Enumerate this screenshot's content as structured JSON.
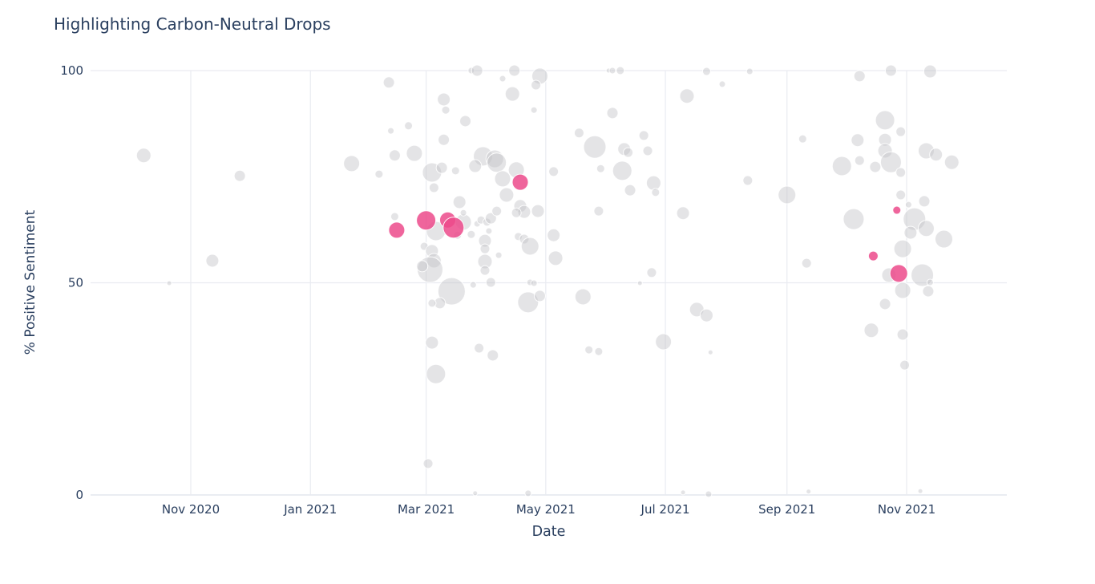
{
  "page": {
    "background": "#ffffff"
  },
  "header": {
    "title": "Highlighting Carbon-Neutral Drops"
  },
  "chart_data": {
    "type": "scatter",
    "subtype": "bubble",
    "title": "Highlighting Carbon-Neutral Drops",
    "xlabel": "Date",
    "ylabel": "% Positive Sentiment",
    "legend": "none",
    "grid": true,
    "x_axis": {
      "type": "date",
      "range": [
        "2020-09-11",
        "2021-12-22"
      ],
      "ticks": [
        {
          "label": "Nov 2020",
          "date": "2020-11-01"
        },
        {
          "label": "Jan 2021",
          "date": "2021-01-01"
        },
        {
          "label": "Mar 2021",
          "date": "2021-03-01"
        },
        {
          "label": "May 2021",
          "date": "2021-05-01"
        },
        {
          "label": "Jul 2021",
          "date": "2021-07-01"
        },
        {
          "label": "Sep 2021",
          "date": "2021-09-01"
        },
        {
          "label": "Nov 2021",
          "date": "2021-11-01"
        }
      ]
    },
    "y_axis": {
      "range": [
        0,
        100
      ],
      "ticks": [
        {
          "label": "0",
          "value": 0
        },
        {
          "label": "50",
          "value": 50
        },
        {
          "label": "100",
          "value": 100
        }
      ]
    },
    "colors": {
      "base_marker": "#c4c4c8",
      "highlight_marker": "#ec4a8b",
      "text": "#2a3f5f",
      "grid": "#e9ebf1",
      "axis_line": "#e3e7ee",
      "marker_stroke": "#ffffff"
    },
    "point_format": [
      "date",
      "pct_positive_sentiment",
      "marker_radius_px"
    ],
    "series": [
      {
        "id": "all-drops",
        "color_key": "base_marker",
        "opacity": 0.45,
        "points": [
          [
            "2020-10-08",
            80,
            9
          ],
          [
            "2020-11-26",
            75.2,
            7
          ],
          [
            "2020-11-12",
            55.2,
            8
          ],
          [
            "2020-10-21",
            49.9,
            3
          ],
          [
            "2021-02-10",
            97.2,
            7
          ],
          [
            "2021-01-22",
            78.1,
            10
          ],
          [
            "2021-02-05",
            75.6,
            5
          ],
          [
            "2021-02-13",
            80,
            7
          ],
          [
            "2021-02-11",
            85.8,
            4
          ],
          [
            "2021-02-20",
            87,
            5
          ],
          [
            "2021-02-23",
            80.5,
            10
          ],
          [
            "2021-02-13",
            65.6,
            5
          ],
          [
            "2021-03-10",
            93.2,
            8
          ],
          [
            "2021-03-11",
            90.7,
            5
          ],
          [
            "2021-03-21",
            88.1,
            7
          ],
          [
            "2021-03-10",
            83.7,
            7
          ],
          [
            "2021-03-04",
            76,
            12
          ],
          [
            "2021-03-09",
            77.1,
            7
          ],
          [
            "2021-03-16",
            76.4,
            5
          ],
          [
            "2021-03-05",
            72.4,
            6
          ],
          [
            "2021-03-18",
            69,
            8
          ],
          [
            "2021-03-06",
            62.2,
            12
          ],
          [
            "2021-03-20",
            64.3,
            10
          ],
          [
            "2021-03-20",
            66.5,
            4
          ],
          [
            "2021-02-28",
            58.6,
            5
          ],
          [
            "2021-03-04",
            57.5,
            8
          ],
          [
            "2021-03-05",
            55.2,
            9
          ],
          [
            "2021-03-03",
            53.1,
            16
          ],
          [
            "2021-02-27",
            53.9,
            7
          ],
          [
            "2021-03-14",
            48,
            17
          ],
          [
            "2021-03-08",
            45.2,
            7
          ],
          [
            "2021-03-04",
            45.2,
            5
          ],
          [
            "2021-03-04",
            35.9,
            8
          ],
          [
            "2021-03-06",
            28.5,
            12
          ],
          [
            "2021-03-02",
            7.4,
            6
          ],
          [
            "2021-03-17",
            61.2,
            5
          ],
          [
            "2021-03-24",
            61.4,
            5
          ],
          [
            "2021-03-27",
            63.9,
            4
          ],
          [
            "2021-03-29",
            64.8,
            5
          ],
          [
            "2021-03-31",
            59.9,
            8
          ],
          [
            "2021-03-31",
            58,
            6
          ],
          [
            "2021-04-02",
            62.2,
            4
          ],
          [
            "2021-04-01",
            64.3,
            5
          ],
          [
            "2021-04-03",
            65.2,
            7
          ],
          [
            "2021-04-06",
            66.9,
            6
          ],
          [
            "2021-03-24",
            100,
            4
          ],
          [
            "2021-03-27",
            100,
            7
          ],
          [
            "2021-04-15",
            100,
            7
          ],
          [
            "2021-04-09",
            98.1,
            4
          ],
          [
            "2021-04-28",
            98.7,
            10
          ],
          [
            "2021-04-26",
            96.6,
            6
          ],
          [
            "2021-04-14",
            94.5,
            9
          ],
          [
            "2021-04-25",
            90.7,
            4
          ],
          [
            "2021-03-30",
            79.8,
            12
          ],
          [
            "2021-04-05",
            79.2,
            11
          ],
          [
            "2021-04-06",
            78.3,
            12
          ],
          [
            "2021-04-16",
            76.6,
            10
          ],
          [
            "2021-04-09",
            74.5,
            10
          ],
          [
            "2021-04-11",
            70.7,
            9
          ],
          [
            "2021-03-26",
            77.5,
            8
          ],
          [
            "2021-04-18",
            68.1,
            8
          ],
          [
            "2021-04-20",
            66.7,
            8
          ],
          [
            "2021-04-27",
            66.9,
            8
          ],
          [
            "2021-04-16",
            66.5,
            6
          ],
          [
            "2021-04-17",
            60.9,
            5
          ],
          [
            "2021-04-20",
            60.3,
            6
          ],
          [
            "2021-04-23",
            58.6,
            11
          ],
          [
            "2021-03-31",
            55,
            9
          ],
          [
            "2021-04-03",
            50.1,
            6
          ],
          [
            "2021-03-25",
            49.5,
            4
          ],
          [
            "2021-03-31",
            52.9,
            6
          ],
          [
            "2021-04-07",
            56.5,
            4
          ],
          [
            "2021-04-22",
            45.4,
            13
          ],
          [
            "2021-04-28",
            46.9,
            7
          ],
          [
            "2021-04-23",
            50.1,
            4
          ],
          [
            "2021-04-25",
            49.9,
            4
          ],
          [
            "2021-03-28",
            34.6,
            6
          ],
          [
            "2021-04-04",
            32.9,
            7
          ],
          [
            "2021-03-26",
            0.4,
            3
          ],
          [
            "2021-04-22",
            0.4,
            4
          ],
          [
            "2021-05-05",
            76.2,
            6
          ],
          [
            "2021-05-05",
            61.2,
            8
          ],
          [
            "2021-05-06",
            55.8,
            9
          ],
          [
            "2021-05-18",
            85.3,
            6
          ],
          [
            "2021-05-26",
            82,
            14
          ],
          [
            "2021-05-20",
            46.7,
            10
          ],
          [
            "2021-05-28",
            66.9,
            6
          ],
          [
            "2021-05-29",
            76.9,
            5
          ],
          [
            "2021-06-02",
            100,
            3
          ],
          [
            "2021-06-04",
            100,
            4
          ],
          [
            "2021-06-08",
            100,
            5
          ],
          [
            "2021-06-10",
            81.5,
            8
          ],
          [
            "2021-06-12",
            80.7,
            6
          ],
          [
            "2021-06-22",
            81.1,
            6
          ],
          [
            "2021-06-09",
            76.4,
            12
          ],
          [
            "2021-06-25",
            73.5,
            9
          ],
          [
            "2021-06-13",
            71.8,
            7
          ],
          [
            "2021-06-26",
            71.3,
            5
          ],
          [
            "2021-06-20",
            84.7,
            6
          ],
          [
            "2021-06-04",
            90,
            7
          ],
          [
            "2021-06-24",
            52.4,
            6
          ],
          [
            "2021-06-18",
            49.9,
            3
          ],
          [
            "2021-07-10",
            66.4,
            8
          ],
          [
            "2021-07-12",
            94,
            9
          ],
          [
            "2021-07-17",
            43.7,
            9
          ],
          [
            "2021-07-22",
            42.3,
            8
          ],
          [
            "2021-07-22",
            99.8,
            5
          ],
          [
            "2021-07-30",
            96.8,
            4
          ],
          [
            "2021-06-30",
            36.1,
            10
          ],
          [
            "2021-05-23",
            34.2,
            5
          ],
          [
            "2021-05-28",
            33.8,
            5
          ],
          [
            "2021-07-24",
            33.6,
            3
          ],
          [
            "2021-07-23",
            0.2,
            4
          ],
          [
            "2021-07-10",
            0.6,
            3
          ],
          [
            "2021-08-13",
            99.8,
            4
          ],
          [
            "2021-08-12",
            74.1,
            6
          ],
          [
            "2021-09-01",
            70.7,
            11
          ],
          [
            "2021-09-09",
            83.9,
            5
          ],
          [
            "2021-09-11",
            54.6,
            6
          ],
          [
            "2021-09-12",
            0.8,
            3
          ],
          [
            "2021-09-29",
            77.5,
            12
          ],
          [
            "2021-10-05",
            65,
            13
          ],
          [
            "2021-10-08",
            98.7,
            7
          ],
          [
            "2021-10-21",
            88.3,
            12
          ],
          [
            "2021-10-29",
            85.6,
            6
          ],
          [
            "2021-10-07",
            83.6,
            8
          ],
          [
            "2021-10-21",
            83.7,
            8
          ],
          [
            "2021-10-21",
            81.1,
            9
          ],
          [
            "2021-10-24",
            78.4,
            13
          ],
          [
            "2021-10-16",
            77.3,
            7
          ],
          [
            "2021-10-08",
            78.8,
            6
          ],
          [
            "2021-10-29",
            76,
            6
          ],
          [
            "2021-11-11",
            81.1,
            10
          ],
          [
            "2021-11-16",
            80.2,
            8
          ],
          [
            "2021-11-24",
            78.4,
            9
          ],
          [
            "2021-10-29",
            70.7,
            6
          ],
          [
            "2021-11-10",
            69.2,
            7
          ],
          [
            "2021-11-02",
            68.4,
            4
          ],
          [
            "2021-11-05",
            65,
            14
          ],
          [
            "2021-11-11",
            62.8,
            10
          ],
          [
            "2021-11-03",
            61.8,
            8
          ],
          [
            "2021-11-20",
            60.3,
            11
          ],
          [
            "2021-10-30",
            58,
            11
          ],
          [
            "2021-10-23",
            51.8,
            9
          ],
          [
            "2021-11-09",
            51.8,
            14
          ],
          [
            "2021-11-13",
            50.1,
            4
          ],
          [
            "2021-11-12",
            48,
            7
          ],
          [
            "2021-10-30",
            48.2,
            10
          ],
          [
            "2021-10-21",
            45,
            7
          ],
          [
            "2021-10-14",
            38.8,
            9
          ],
          [
            "2021-10-30",
            37.8,
            7
          ],
          [
            "2021-10-31",
            30.6,
            6
          ],
          [
            "2021-11-08",
            0.9,
            3
          ],
          [
            "2021-10-24",
            100,
            7
          ],
          [
            "2021-11-13",
            99.8,
            8
          ]
        ]
      },
      {
        "id": "carbon-neutral-drops",
        "color_key": "highlight_marker",
        "opacity": 0.85,
        "points": [
          [
            "2021-02-14",
            62.4,
            10
          ],
          [
            "2021-03-01",
            64.7,
            12
          ],
          [
            "2021-03-12",
            64.8,
            10
          ],
          [
            "2021-03-15",
            63,
            13
          ],
          [
            "2021-04-18",
            73.7,
            10
          ],
          [
            "2021-10-27",
            67.1,
            5
          ],
          [
            "2021-10-15",
            56.3,
            6
          ],
          [
            "2021-10-28",
            52.2,
            11
          ]
        ]
      }
    ]
  }
}
